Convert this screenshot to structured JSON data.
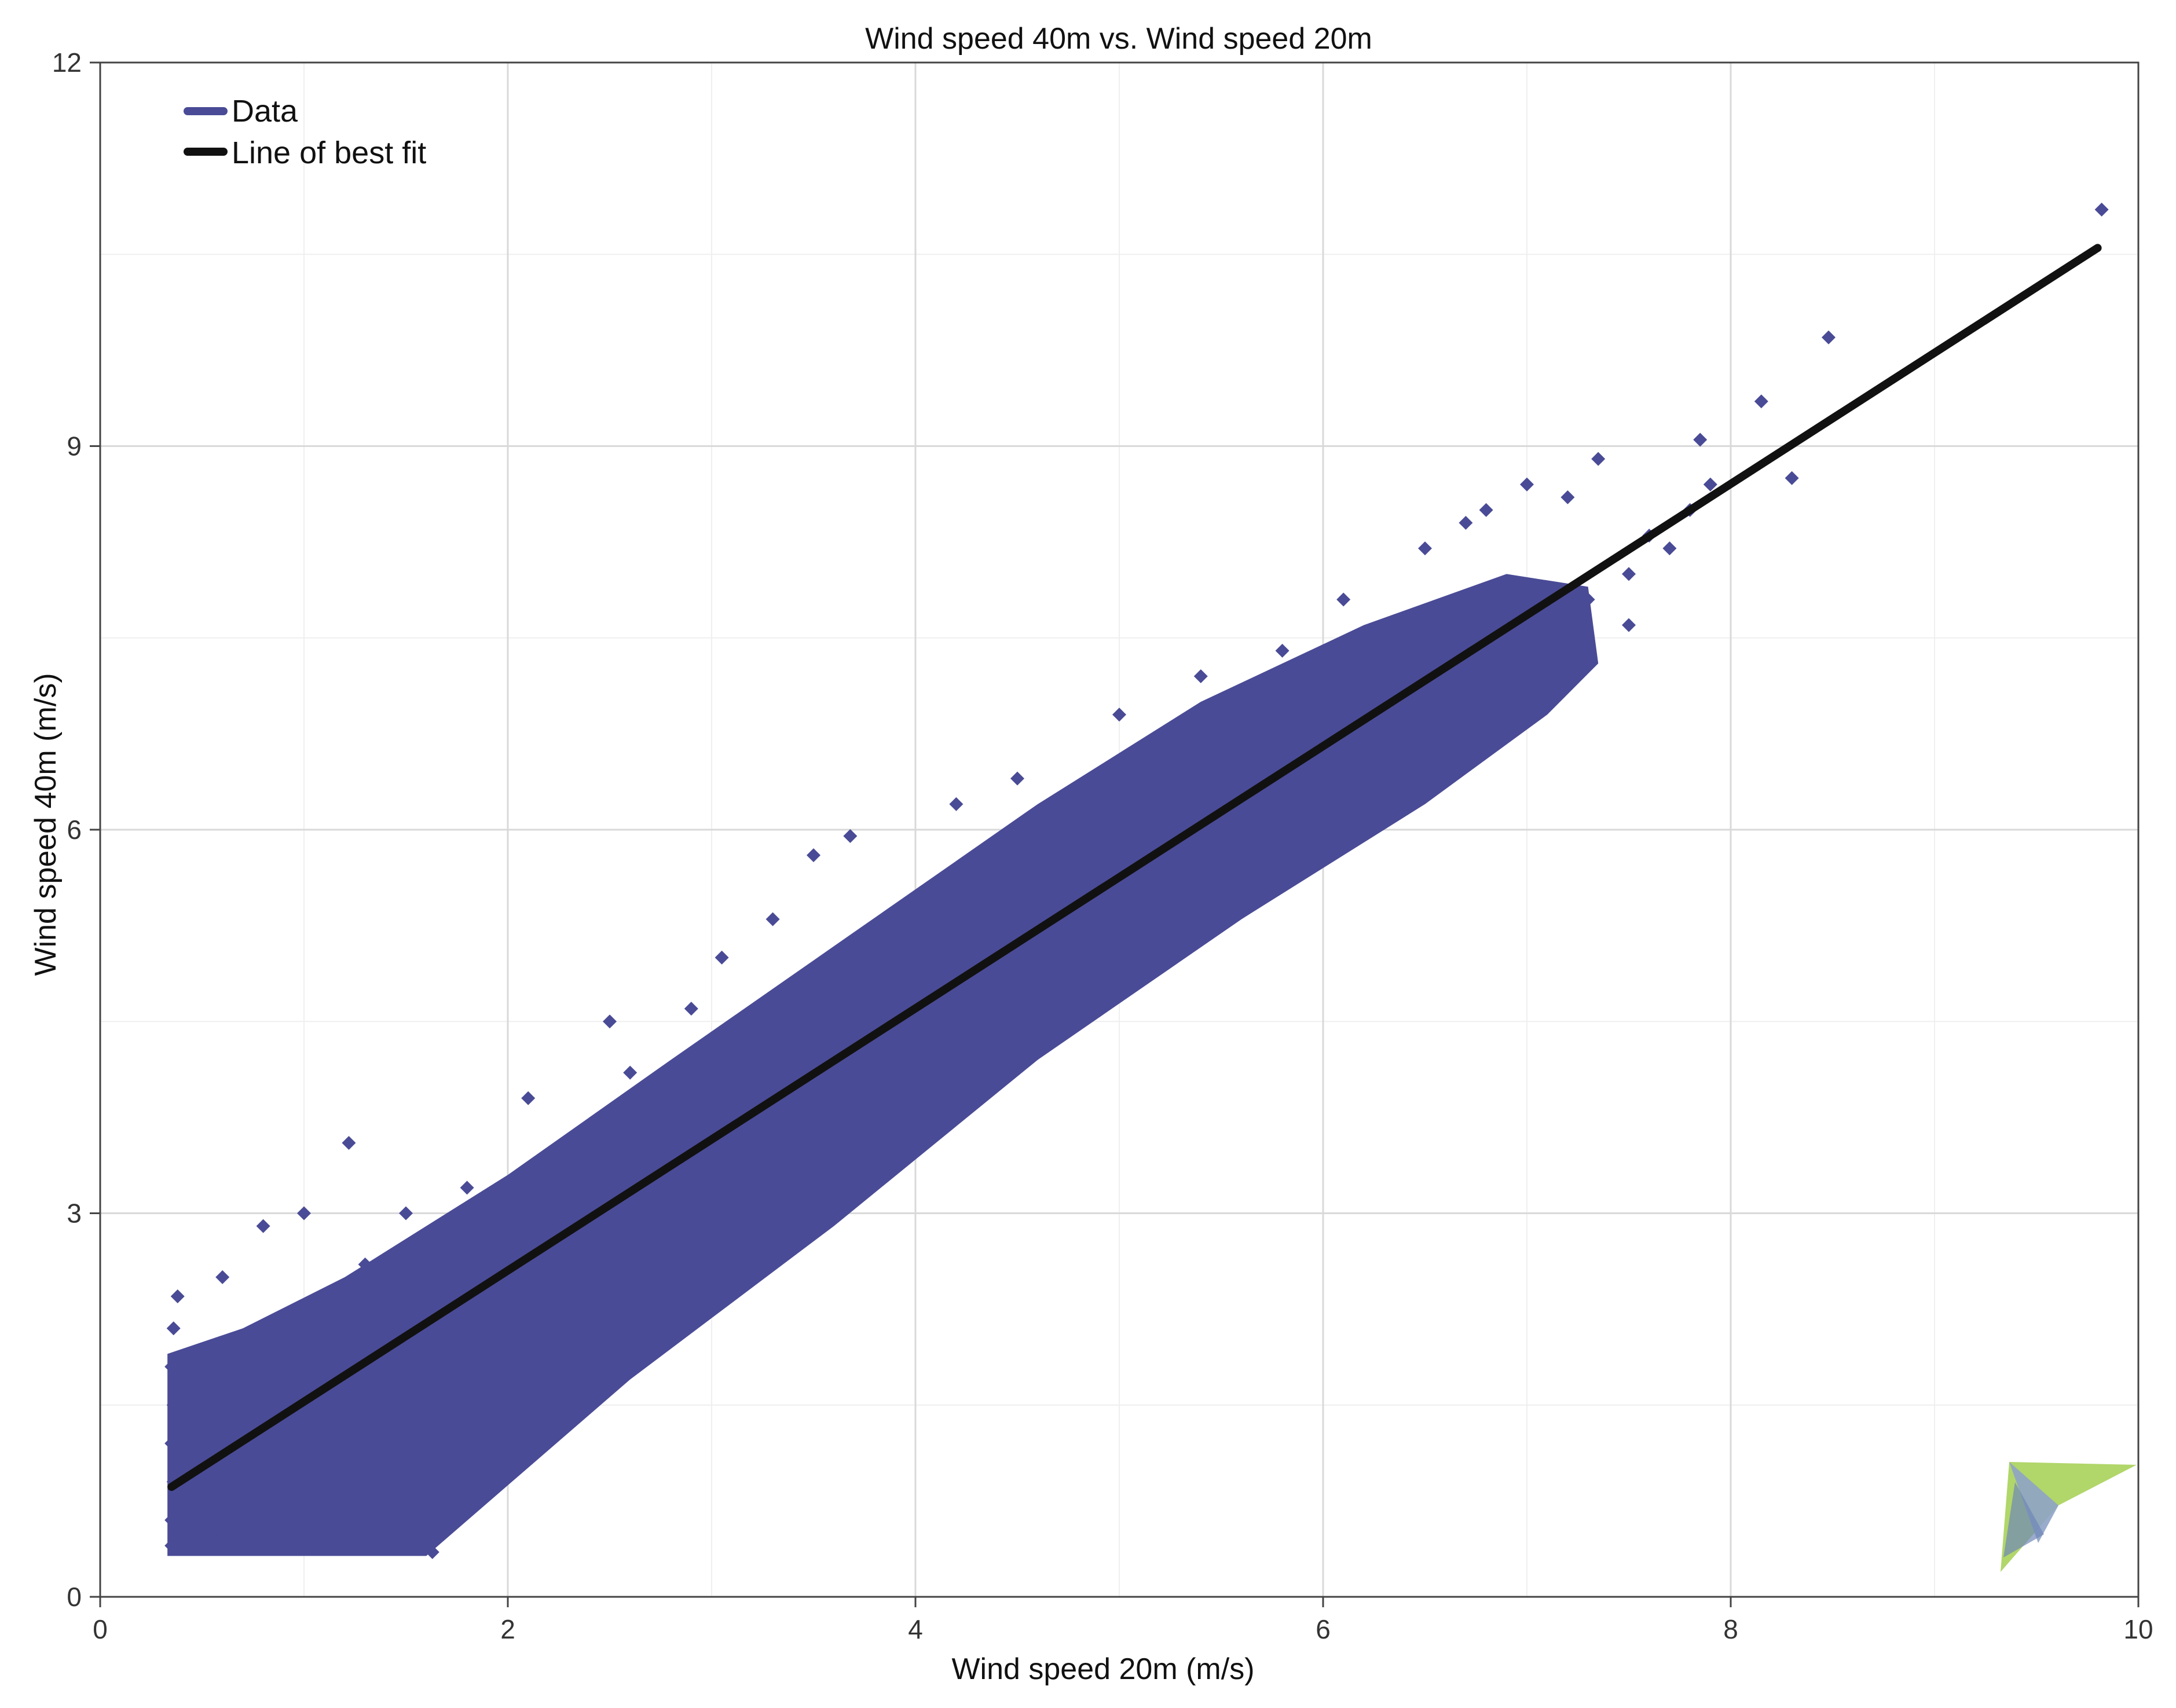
{
  "chart_data": {
    "type": "scatter",
    "title": "Wind speed 40m vs. Wind speed 20m",
    "xlabel": "Wind speed 20m (m/s)",
    "ylabel": "Wind speed 40m (m/s)",
    "xlim": [
      0,
      10
    ],
    "ylim": [
      0,
      12
    ],
    "x_ticks": [
      "0",
      "2",
      "4",
      "6",
      "8",
      "10"
    ],
    "y_ticks": [
      "0",
      "3",
      "6",
      "9",
      "12"
    ],
    "grid": true,
    "legend": "top-left",
    "legend_entries": [
      "Data",
      "Line of best fit"
    ],
    "series": [
      {
        "name": "Data",
        "kind": "scatter",
        "color": "#4a4b96",
        "points": [
          [
            0.35,
            0.4
          ],
          [
            0.35,
            0.6
          ],
          [
            0.36,
            0.9
          ],
          [
            0.35,
            1.2
          ],
          [
            0.36,
            1.5
          ],
          [
            0.35,
            1.8
          ],
          [
            0.36,
            2.1
          ],
          [
            0.38,
            2.35
          ],
          [
            0.5,
            0.4
          ],
          [
            0.6,
            0.5
          ],
          [
            0.7,
            0.4
          ],
          [
            0.8,
            0.5
          ],
          [
            0.9,
            0.4
          ],
          [
            1.0,
            0.4
          ],
          [
            1.1,
            0.4
          ],
          [
            1.25,
            0.5
          ],
          [
            1.4,
            0.4
          ],
          [
            1.63,
            0.35
          ],
          [
            0.5,
            1.3
          ],
          [
            0.6,
            1.6
          ],
          [
            0.7,
            1.7
          ],
          [
            0.9,
            1.9
          ],
          [
            0.6,
            2.5
          ],
          [
            0.8,
            2.9
          ],
          [
            1.0,
            3.0
          ],
          [
            1.22,
            3.55
          ],
          [
            1.0,
            1.2
          ],
          [
            1.2,
            1.4
          ],
          [
            1.4,
            1.6
          ],
          [
            1.6,
            1.8
          ],
          [
            1.8,
            1.7
          ],
          [
            1.3,
            2.6
          ],
          [
            1.5,
            3.0
          ],
          [
            1.8,
            3.2
          ],
          [
            2.1,
            3.9
          ],
          [
            2.5,
            4.5
          ],
          [
            2.6,
            4.1
          ],
          [
            2.9,
            4.6
          ],
          [
            3.05,
            5.0
          ],
          [
            3.3,
            5.3
          ],
          [
            3.5,
            5.8
          ],
          [
            3.68,
            5.95
          ],
          [
            2.0,
            1.7
          ],
          [
            2.3,
            1.9
          ],
          [
            2.6,
            2.4
          ],
          [
            2.9,
            2.6
          ],
          [
            3.1,
            2.9
          ],
          [
            3.2,
            3.2
          ],
          [
            3.5,
            3.6
          ],
          [
            3.8,
            3.9
          ],
          [
            4.1,
            4.2
          ],
          [
            2.3,
            2.8
          ],
          [
            2.6,
            3.1
          ],
          [
            3.0,
            3.5
          ],
          [
            3.3,
            3.8
          ],
          [
            3.7,
            4.2
          ],
          [
            4.0,
            4.6
          ],
          [
            4.3,
            4.9
          ],
          [
            4.7,
            5.3
          ],
          [
            5.0,
            5.6
          ],
          [
            5.3,
            6.0
          ],
          [
            5.6,
            6.2
          ],
          [
            5.9,
            6.6
          ],
          [
            6.2,
            6.9
          ],
          [
            6.5,
            7.2
          ],
          [
            6.8,
            7.4
          ],
          [
            7.0,
            7.6
          ],
          [
            2.0,
            2.5
          ],
          [
            2.5,
            3.0
          ],
          [
            3.0,
            3.7
          ],
          [
            3.5,
            4.2
          ],
          [
            4.0,
            4.8
          ],
          [
            4.5,
            5.3
          ],
          [
            5.0,
            5.9
          ],
          [
            5.5,
            6.4
          ],
          [
            6.0,
            7.0
          ],
          [
            6.5,
            7.6
          ],
          [
            4.5,
            4.8
          ],
          [
            4.9,
            5.1
          ],
          [
            5.3,
            5.4
          ],
          [
            5.7,
            5.9
          ],
          [
            6.1,
            6.2
          ],
          [
            6.5,
            6.6
          ],
          [
            6.9,
            7.0
          ],
          [
            7.2,
            7.3
          ],
          [
            4.2,
            6.2
          ],
          [
            4.5,
            6.4
          ],
          [
            5.0,
            6.9
          ],
          [
            5.4,
            7.2
          ],
          [
            5.8,
            7.4
          ],
          [
            6.1,
            7.8
          ],
          [
            6.5,
            8.2
          ],
          [
            6.8,
            8.5
          ],
          [
            7.0,
            8.7
          ],
          [
            7.2,
            8.6
          ],
          [
            7.35,
            8.9
          ],
          [
            6.7,
            8.4
          ],
          [
            7.3,
            7.8
          ],
          [
            7.5,
            8.0
          ],
          [
            7.6,
            8.3
          ],
          [
            7.7,
            8.2
          ],
          [
            7.5,
            7.6
          ],
          [
            7.8,
            8.5
          ],
          [
            7.9,
            8.7
          ],
          [
            7.85,
            9.05
          ],
          [
            8.15,
            9.35
          ],
          [
            8.3,
            8.75
          ],
          [
            8.48,
            9.85
          ],
          [
            9.82,
            10.85
          ]
        ]
      },
      {
        "name": "Line of best fit",
        "kind": "line",
        "color": "#111111",
        "points": [
          [
            0.35,
            0.86
          ],
          [
            9.8,
            10.55
          ]
        ]
      }
    ]
  },
  "colors": {
    "scatter": "#4a4b96",
    "fit_line": "#111111",
    "grid_major": "#d9d9d9",
    "grid_minor": "#efefef",
    "axis": "#444444",
    "logo_green": "#a9d25a",
    "logo_blue": "#8fa3c7"
  },
  "logo": "software-logo-icon"
}
